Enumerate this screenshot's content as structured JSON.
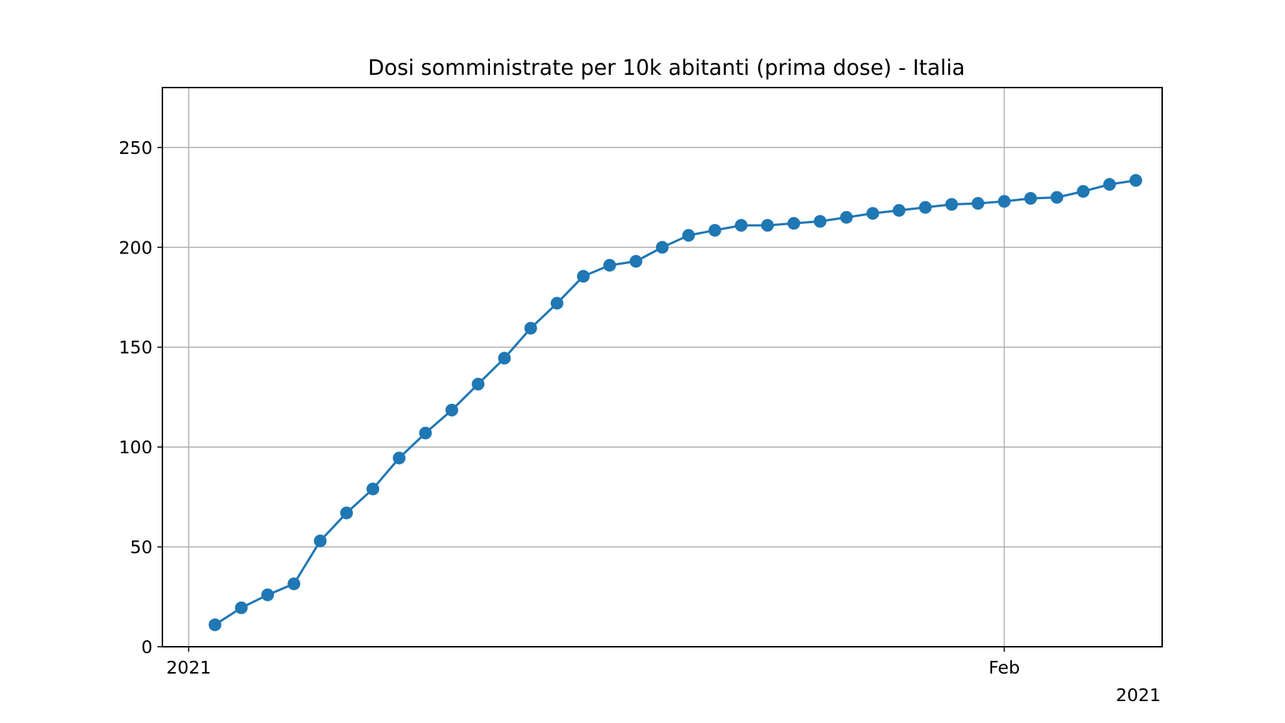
{
  "chart_data": {
    "type": "line",
    "title": "Dosi somministrate per 10k abitanti (prima dose) - Italia",
    "xlabel": "",
    "ylabel": "",
    "x_axis": {
      "type": "date",
      "ticks": [
        {
          "date": "2021-01-01",
          "label": "2021"
        },
        {
          "date": "2021-02-01",
          "label": "Feb"
        }
      ],
      "offset_label": "2021",
      "range": [
        "2020-12-31",
        "2021-02-07"
      ]
    },
    "y_axis": {
      "range": [
        0,
        280
      ],
      "ticks": [
        0,
        50,
        100,
        150,
        200,
        250
      ]
    },
    "grid": true,
    "legend": "none",
    "series": [
      {
        "color": "#1f77b4",
        "marker": "circle",
        "x": [
          "2021-01-02",
          "2021-01-03",
          "2021-01-04",
          "2021-01-05",
          "2021-01-06",
          "2021-01-07",
          "2021-01-08",
          "2021-01-09",
          "2021-01-10",
          "2021-01-11",
          "2021-01-12",
          "2021-01-13",
          "2021-01-14",
          "2021-01-15",
          "2021-01-16",
          "2021-01-17",
          "2021-01-18",
          "2021-01-19",
          "2021-01-20",
          "2021-01-21",
          "2021-01-22",
          "2021-01-23",
          "2021-01-24",
          "2021-01-25",
          "2021-01-26",
          "2021-01-27",
          "2021-01-28",
          "2021-01-29",
          "2021-01-30",
          "2021-01-31",
          "2021-02-01",
          "2021-02-02",
          "2021-02-03",
          "2021-02-04",
          "2021-02-05",
          "2021-02-06"
        ],
        "values": [
          11,
          19.5,
          26,
          31.5,
          53,
          67,
          79,
          94.5,
          107,
          118.5,
          131.5,
          144.5,
          159.5,
          172,
          185.5,
          191,
          193,
          200,
          206,
          208.5,
          211,
          211,
          212,
          213,
          215,
          217,
          218.5,
          220,
          221.5,
          222,
          223,
          224.5,
          225,
          228,
          231.5,
          233.5
        ]
      }
    ]
  }
}
